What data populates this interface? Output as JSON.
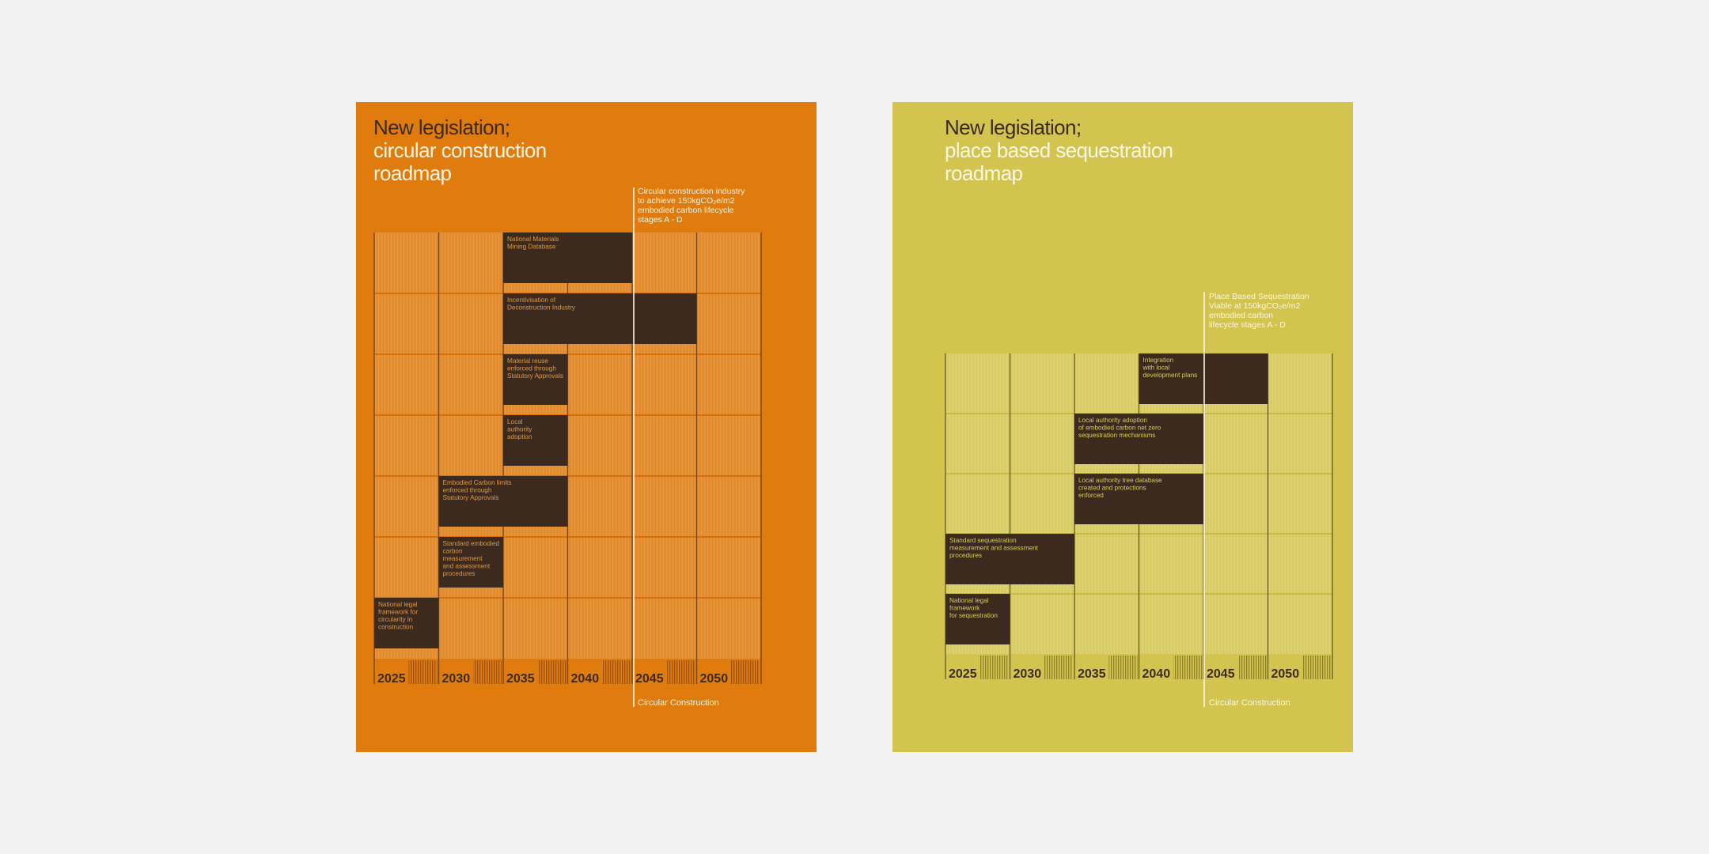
{
  "posters": [
    {
      "id": "circular",
      "title_lines": [
        "New legislation;",
        "circular construction",
        "roadmap"
      ],
      "years": [
        "2025",
        "2030",
        "2035",
        "2040",
        "2045",
        "2050"
      ],
      "milestone_note": [
        "Circular construction industry",
        "to achieve 150kgCO₂e/m2",
        "embodied carbon lifecycle",
        "stages A - D"
      ],
      "footer_label": "Circular Construction",
      "colors": {
        "background": "#e07b0e",
        "cell": "#e38c2e",
        "stripe": "#eb9a44",
        "bar": "#3d2a1e",
        "bar_text": "#d99a4a",
        "year_label": "#3d2a1e",
        "hatch": "#9a520a",
        "gridline": "#d86f0a",
        "axis_line": "#7a4510",
        "title_dark": "#3d2a1e",
        "title_light": "#fdf4e2",
        "note": "#fdf4e2"
      },
      "bars": [
        {
          "row": 0,
          "start": 2,
          "end": 4,
          "lines": [
            "National Materials",
            "Mining Database"
          ]
        },
        {
          "row": 1,
          "start": 2,
          "end": 5,
          "lines": [
            "Incentivisation of",
            "Deconstruction Industry"
          ]
        },
        {
          "row": 2,
          "start": 2,
          "end": 3,
          "lines": [
            "Material reuse",
            "enforced through",
            "Statutory Approvals"
          ]
        },
        {
          "row": 3,
          "start": 2,
          "end": 3,
          "lines": [
            "Local",
            "authority",
            "adoption"
          ]
        },
        {
          "row": 4,
          "start": 1,
          "end": 3,
          "lines": [
            "Embodied Carbon limits",
            "enforced through",
            "Statutory Approvals"
          ]
        },
        {
          "row": 5,
          "start": 1,
          "end": 2,
          "lines": [
            "Standard embodied",
            "carbon",
            "measurement",
            "and assessment",
            "procedures"
          ]
        },
        {
          "row": 6,
          "start": 0,
          "end": 1,
          "lines": [
            "National legal",
            "framework for",
            "circularity in",
            "construction"
          ]
        }
      ]
    },
    {
      "id": "sequestration",
      "title_lines": [
        "New legislation;",
        "place based sequestration",
        "roadmap"
      ],
      "years": [
        "2025",
        "2030",
        "2035",
        "2040",
        "2045",
        "2050"
      ],
      "milestone_note": [
        "Place Based Sequestration",
        "Viable at 150kgCO₂e/m2",
        "embodied carbon",
        "lifecycle stages A - D"
      ],
      "footer_label": "Circular Construction",
      "colors": {
        "background": "#d2c44e",
        "cell": "#d8cc62",
        "stripe": "#e0d57a",
        "bar": "#3d2a1e",
        "bar_text": "#d9cd55",
        "year_label": "#3d2a1e",
        "hatch": "#8f8228",
        "gridline": "#c8b944",
        "axis_line": "#6e6220",
        "title_dark": "#3d2a1e",
        "title_light": "#fbf7e6",
        "note": "#fbf7e6"
      },
      "bars": [
        {
          "row": 0,
          "start": 3,
          "end": 5,
          "lines": [
            "Integration",
            "with local",
            "development plans"
          ]
        },
        {
          "row": 1,
          "start": 2,
          "end": 4,
          "lines": [
            "Local authority adoption",
            "of embodied carbon net zero",
            "sequestration mechanisms"
          ]
        },
        {
          "row": 2,
          "start": 2,
          "end": 4,
          "lines": [
            "Local authority tree database",
            "created and protections",
            "enforced"
          ]
        },
        {
          "row": 3,
          "start": 0,
          "end": 2,
          "lines": [
            "Standard sequestration",
            "measurement and assessment",
            "procedures"
          ]
        },
        {
          "row": 4,
          "start": 0,
          "end": 1,
          "lines": [
            "National legal",
            "framework",
            "for sequestration"
          ]
        }
      ]
    }
  ]
}
